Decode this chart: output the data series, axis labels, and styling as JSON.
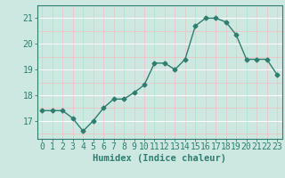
{
  "x": [
    0,
    1,
    2,
    3,
    4,
    5,
    6,
    7,
    8,
    9,
    10,
    11,
    12,
    13,
    14,
    15,
    16,
    17,
    18,
    19,
    20,
    21,
    22,
    23
  ],
  "y": [
    17.4,
    17.4,
    17.4,
    17.1,
    16.6,
    17.0,
    17.5,
    17.85,
    17.85,
    18.1,
    18.4,
    19.25,
    19.25,
    19.0,
    19.4,
    20.7,
    21.0,
    21.0,
    20.85,
    20.35,
    19.4,
    19.4,
    19.4,
    18.8
  ],
  "line_color": "#2e7d6e",
  "marker": "D",
  "marker_size": 2.5,
  "bg_color": "#cde8e1",
  "grid_minor_color": "#e8c8c8",
  "grid_major_color": "#ffffff",
  "axis_color": "#2e7d6e",
  "xlabel": "Humidex (Indice chaleur)",
  "xlabel_fontsize": 7.5,
  "tick_fontsize": 7,
  "ylim": [
    16.3,
    21.5
  ],
  "yticks": [
    17,
    18,
    19,
    20,
    21
  ],
  "xlim": [
    -0.5,
    23.5
  ],
  "xticks": [
    0,
    1,
    2,
    3,
    4,
    5,
    6,
    7,
    8,
    9,
    10,
    11,
    12,
    13,
    14,
    15,
    16,
    17,
    18,
    19,
    20,
    21,
    22,
    23
  ]
}
